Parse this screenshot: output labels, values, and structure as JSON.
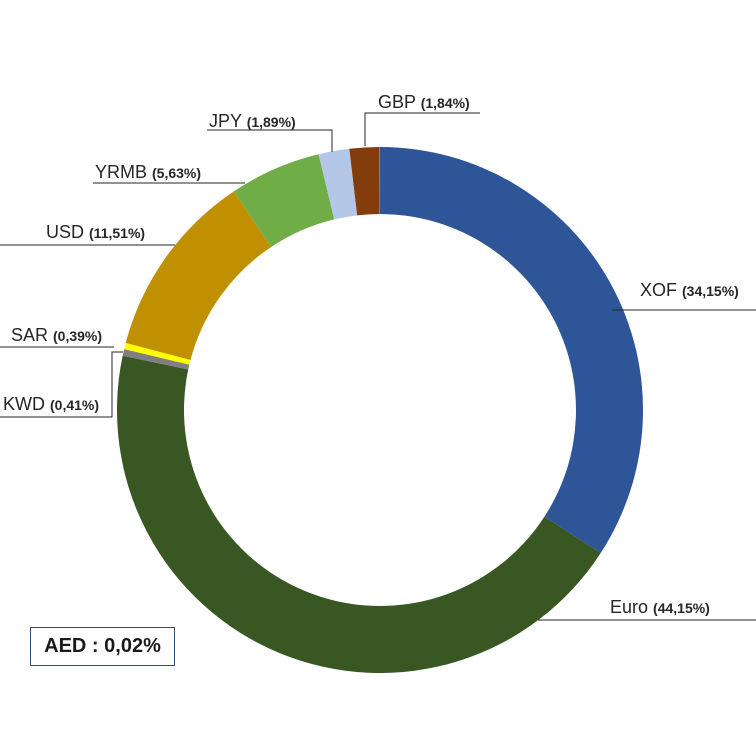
{
  "chart_data": {
    "type": "pie",
    "variant": "donut",
    "slices": [
      {
        "name": "XOF",
        "pct_label": "(34,15%)",
        "value": 34.15,
        "color": "#2e5597"
      },
      {
        "name": "Euro",
        "pct_label": "(44,15%)",
        "value": 44.15,
        "color": "#385723"
      },
      {
        "name": "KWD",
        "pct_label": "(0,41%)",
        "value": 0.41,
        "color": "#7f7f7f"
      },
      {
        "name": "SAR",
        "pct_label": "(0,39%)",
        "value": 0.39,
        "color": "#ffff00"
      },
      {
        "name": "USD",
        "pct_label": "(11,51%)",
        "value": 11.51,
        "color": "#c09000"
      },
      {
        "name": "YRMB",
        "pct_label": "(5,63%)",
        "value": 5.63,
        "color": "#70ad47"
      },
      {
        "name": "JPY",
        "pct_label": "(1,89%)",
        "value": 1.89,
        "color": "#b4c7e7"
      },
      {
        "name": "GBP",
        "pct_label": "(1,84%)",
        "value": 1.84,
        "color": "#843c0c"
      },
      {
        "name": "AED",
        "pct_label": "0,02%",
        "value": 0.02,
        "color": "#f2f2f2"
      }
    ],
    "start_angle_deg": 0,
    "direction": "clockwise",
    "legend": "none",
    "annotation": "AED : 0,02%"
  }
}
